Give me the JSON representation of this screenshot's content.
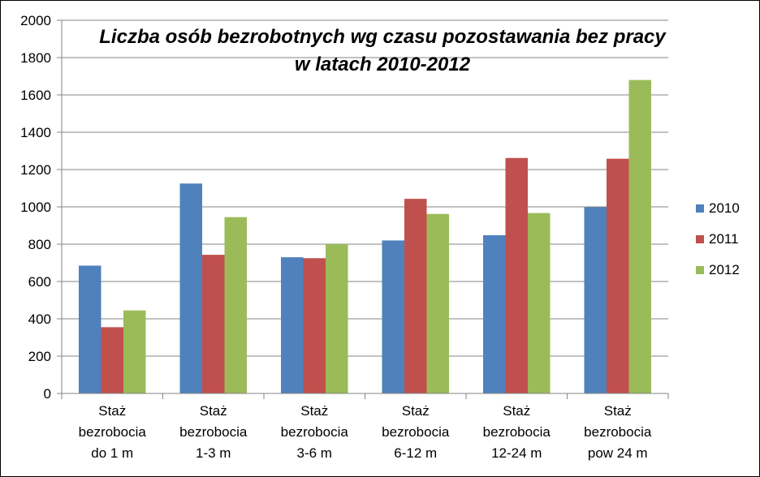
{
  "chart_data": {
    "type": "bar",
    "title_lines": [
      "Liczba osób bezrobotnych wg czasu pozostawania bez pracy",
      "w latach 2010-2012"
    ],
    "categories": [
      [
        "Staż",
        "bezrobocia",
        "do 1 m"
      ],
      [
        "Staż",
        "bezrobocia",
        "1-3 m"
      ],
      [
        "Staż",
        "bezrobocia",
        "3-6 m"
      ],
      [
        "Staż",
        "bezrobocia",
        "6-12 m"
      ],
      [
        "Staż",
        "bezrobocia",
        "12-24 m"
      ],
      [
        "Staż",
        "bezrobocia",
        "pow 24 m"
      ]
    ],
    "series": [
      {
        "name": "2010",
        "color": "#4F81BD",
        "values": [
          685,
          1125,
          730,
          820,
          848,
          998
        ]
      },
      {
        "name": "2011",
        "color": "#C0504D",
        "values": [
          355,
          743,
          725,
          1043,
          1262,
          1258
        ]
      },
      {
        "name": "2012",
        "color": "#9BBB59",
        "values": [
          445,
          945,
          800,
          962,
          967,
          1680
        ]
      }
    ],
    "ylim": [
      0,
      2000
    ],
    "yticks": [
      0,
      200,
      400,
      600,
      800,
      1000,
      1200,
      1400,
      1600,
      1800,
      2000
    ],
    "grid": true,
    "legend_position": "right"
  }
}
